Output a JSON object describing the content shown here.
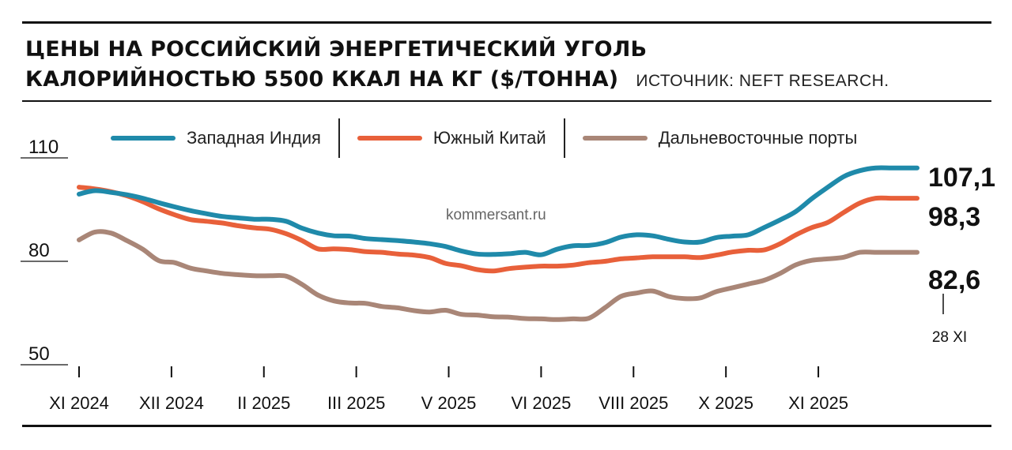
{
  "header": {
    "title_line1": "ЦЕНЫ НА РОССИЙСКИЙ ЭНЕРГЕТИЧЕСКИЙ УГОЛЬ",
    "title_line2": "КАЛОРИЙНОСТЬЮ 5500 ККАЛ НА КГ ($/ТОННА)",
    "source": "ИСТОЧНИК: NEFT RESEARCH."
  },
  "watermark": "kommersant.ru",
  "colors": {
    "background": "#ffffff",
    "text": "#111111",
    "western_india": "#1f8aaa",
    "south_china": "#e8603a",
    "far_east_ports": "#a98677"
  },
  "chart_data": {
    "type": "line",
    "title": "ЦЕНЫ НА РОССИЙСКИЙ ЭНЕРГЕТИЧЕСКИЙ УГОЛЬ КАЛОРИЙНОСТЬЮ 5500 ККАЛ НА КГ ($/ТОННА)",
    "xlabel": "",
    "ylabel": "",
    "ylim": [
      50,
      110
    ],
    "yticks": [
      {
        "value": 110,
        "label": "110"
      },
      {
        "value": 80,
        "label": "80"
      },
      {
        "value": 50,
        "label": "50"
      }
    ],
    "x_unit": "weeks since the first plotted point",
    "xlim": [
      0,
      52.6
    ],
    "xticks": [
      {
        "x": 0,
        "label": "XI 2024"
      },
      {
        "x": 5.8,
        "label": "XII 2024"
      },
      {
        "x": 11.6,
        "label": "II 2025"
      },
      {
        "x": 17.4,
        "label": "III 2025"
      },
      {
        "x": 23.2,
        "label": "V 2025"
      },
      {
        "x": 29.0,
        "label": "VI 2025"
      },
      {
        "x": 34.8,
        "label": "VIII 2025"
      },
      {
        "x": 40.6,
        "label": "X 2025"
      },
      {
        "x": 46.4,
        "label": "XI 2025"
      }
    ],
    "x": [
      0,
      1,
      2,
      3,
      4,
      5,
      6,
      7,
      8,
      9,
      10,
      11,
      12,
      13,
      14,
      15,
      16,
      17,
      18,
      19,
      20,
      21,
      22,
      23,
      24,
      25,
      26,
      27,
      28,
      29,
      30,
      31,
      32,
      33,
      34,
      35,
      36,
      37,
      38,
      39,
      40,
      41,
      42,
      43,
      44,
      45,
      46,
      47,
      48,
      49,
      50,
      51,
      52,
      52.6
    ],
    "series": [
      {
        "name": "Западная Индия",
        "color": "#1f8aaa",
        "values": [
          99.5,
          100.5,
          100,
          99.3,
          98.3,
          97,
          95.8,
          94.7,
          93.8,
          93,
          92.6,
          92.2,
          92.2,
          91.6,
          89.6,
          88.2,
          87.4,
          87.3,
          86.6,
          86.3,
          86,
          85.6,
          85.1,
          84.3,
          83,
          82.1,
          82,
          82.2,
          82.6,
          81.9,
          83.5,
          84.5,
          84.6,
          85.4,
          87,
          87.7,
          87.4,
          86.4,
          85.6,
          85.6,
          86.9,
          87.3,
          87.7,
          89.8,
          92,
          94.5,
          98.2,
          101.5,
          104.6,
          106.3,
          107.1,
          107.1,
          107.1,
          107.1
        ],
        "end_label": "107,1"
      },
      {
        "name": "Южный Китай",
        "color": "#e8603a",
        "values": [
          101.5,
          101,
          100.2,
          99,
          97.3,
          95.2,
          93.5,
          92.1,
          91.6,
          91.1,
          90.3,
          89.7,
          89.3,
          88,
          86,
          83.6,
          83.6,
          83.4,
          82.8,
          82.6,
          82.1,
          81.8,
          81.1,
          79.4,
          78.7,
          77.6,
          77.2,
          77.9,
          78.3,
          78.6,
          78.6,
          78.9,
          79.6,
          80,
          80.7,
          81,
          81.3,
          81.3,
          81.3,
          81.1,
          81.8,
          82.7,
          83.2,
          83.3,
          85.1,
          87.7,
          89.8,
          91.3,
          94.2,
          96.9,
          98.3,
          98.3,
          98.3,
          98.3
        ],
        "end_label": "98,3"
      },
      {
        "name": "Дальневосточные порты",
        "color": "#a98677",
        "values": [
          86.2,
          88.5,
          88.2,
          86,
          83.5,
          80.2,
          79.6,
          78,
          77.2,
          76.5,
          76.1,
          75.8,
          75.8,
          75.7,
          73.3,
          70.2,
          68.5,
          67.9,
          67.8,
          66.9,
          66.5,
          65.7,
          65.3,
          65.8,
          64.6,
          64.4,
          63.9,
          63.8,
          63.4,
          63.3,
          63.1,
          63.3,
          63.5,
          66.5,
          69.8,
          70.8,
          71.4,
          69.8,
          69.2,
          69.4,
          71.2,
          72.3,
          73.4,
          74.5,
          76.5,
          79,
          80.3,
          80.7,
          81.2,
          82.6,
          82.6,
          82.6,
          82.6,
          82.6
        ],
        "end_label": "82,6"
      }
    ],
    "legend": {
      "placement": "top",
      "orientation": "horizontal"
    },
    "grid": false,
    "annotations": [
      "28 XI"
    ]
  }
}
